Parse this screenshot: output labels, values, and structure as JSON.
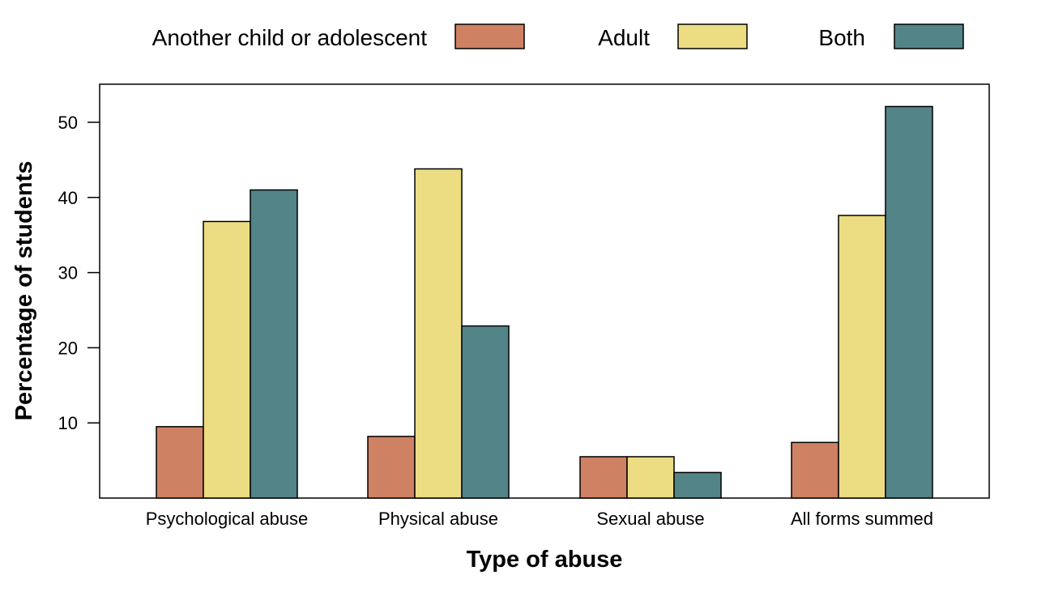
{
  "chart_data": {
    "type": "bar",
    "title": "",
    "xlabel": "Type of abuse",
    "ylabel": "Percentage of students",
    "categories": [
      "Psychological abuse",
      "Physical abuse",
      "Sexual abuse",
      "All forms summed"
    ],
    "series": [
      {
        "name": "Another child or adolescent",
        "color": "#cf8163",
        "values": [
          9.5,
          8.2,
          5.5,
          7.4
        ]
      },
      {
        "name": "Adult",
        "color": "#ecdc82",
        "values": [
          36.8,
          43.8,
          5.5,
          37.6
        ]
      },
      {
        "name": "Both",
        "color": "#538487",
        "values": [
          41.0,
          22.9,
          3.4,
          52.1
        ]
      }
    ],
    "ylim": [
      0,
      55
    ],
    "yticks": [
      10,
      20,
      30,
      40,
      50
    ],
    "grid": false,
    "legend_position": "top"
  }
}
